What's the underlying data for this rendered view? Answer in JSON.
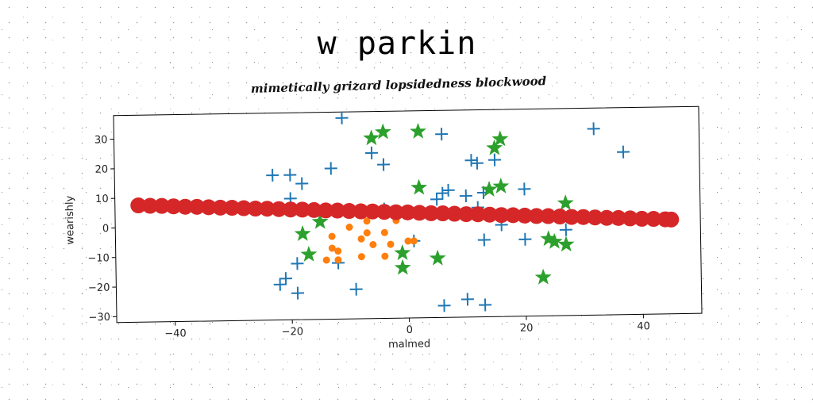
{
  "header": {
    "title": "w parkin",
    "subtitle": "mimetically grizard lopsidedness blockwood"
  },
  "chart_data": {
    "type": "scatter",
    "xlabel": "malmed",
    "ylabel": "wearishly",
    "xlim": [
      -50,
      50
    ],
    "ylim": [
      -32,
      38
    ],
    "xticks": [
      -40,
      -20,
      0,
      20,
      40
    ],
    "yticks": [
      -30,
      -20,
      -10,
      0,
      10,
      20,
      30
    ],
    "xtick_labels": [
      "−40",
      "−20",
      "0",
      "20",
      "40"
    ],
    "ytick_labels": [
      "−30",
      "−20",
      "−10",
      "0",
      "10",
      "20",
      "30"
    ],
    "grid": false,
    "series": [
      {
        "marker": "plus",
        "color": "#1f77b4",
        "points": [
          [
            -11,
            36
          ],
          [
            -6,
            24
          ],
          [
            -4,
            20
          ],
          [
            6,
            30
          ],
          [
            32,
            31
          ],
          [
            37,
            23
          ],
          [
            -23,
            17
          ],
          [
            -20,
            17
          ],
          [
            -18,
            14
          ],
          [
            -13,
            19
          ],
          [
            11,
            21
          ],
          [
            12,
            20
          ],
          [
            15,
            21
          ],
          [
            20,
            11
          ],
          [
            10,
            9
          ],
          [
            6,
            10
          ],
          [
            5,
            8
          ],
          [
            7,
            11
          ],
          [
            13,
            10
          ],
          [
            -20,
            9
          ],
          [
            -4,
            5
          ],
          [
            12,
            5
          ],
          [
            16,
            -1
          ],
          [
            27,
            -3
          ],
          [
            1,
            -6
          ],
          [
            13,
            -6
          ],
          [
            20,
            -6
          ],
          [
            -12,
            -13
          ],
          [
            -19,
            -13
          ],
          [
            -22,
            -20
          ],
          [
            -21,
            -18
          ],
          [
            -19,
            -23
          ],
          [
            -9,
            -22
          ],
          [
            6,
            -28
          ],
          [
            10,
            -26
          ],
          [
            13,
            -28
          ]
        ]
      },
      {
        "marker": "circle",
        "color": "#ff7f0e",
        "points": [
          [
            -7,
            1
          ],
          [
            -2,
            1
          ],
          [
            -10,
            -1
          ],
          [
            -7,
            -3
          ],
          [
            -4,
            -3
          ],
          [
            -13,
            -4
          ],
          [
            -8,
            -5
          ],
          [
            -6,
            -7
          ],
          [
            -3,
            -7
          ],
          [
            0,
            -6
          ],
          [
            1,
            -6
          ],
          [
            -13,
            -8
          ],
          [
            -12,
            -9
          ],
          [
            -8,
            -11
          ],
          [
            -4,
            -11
          ],
          [
            -14,
            -12
          ],
          [
            -12,
            -12
          ]
        ]
      },
      {
        "marker": "star",
        "color": "#2ca02c",
        "points": [
          [
            -4,
            31
          ],
          [
            -6,
            29
          ],
          [
            2,
            31
          ],
          [
            16,
            28
          ],
          [
            15,
            25
          ],
          [
            2,
            12
          ],
          [
            14,
            11
          ],
          [
            16,
            12
          ],
          [
            27,
            6
          ],
          [
            -15,
            1
          ],
          [
            -18,
            -3
          ],
          [
            -17,
            -10
          ],
          [
            -1,
            -10
          ],
          [
            -1,
            -15
          ],
          [
            5,
            -12
          ],
          [
            24,
            -6
          ],
          [
            25,
            -7
          ],
          [
            27,
            -8
          ],
          [
            23,
            -19
          ]
        ]
      },
      {
        "marker": "circle-large",
        "color": "#d62728",
        "points": [
          [
            -46,
            7.5
          ],
          [
            -44,
            7.3
          ],
          [
            -42,
            7.2
          ],
          [
            -40,
            7.0
          ],
          [
            -38,
            6.8
          ],
          [
            -36,
            6.7
          ],
          [
            -34,
            6.5
          ],
          [
            -32,
            6.3
          ],
          [
            -30,
            6.2
          ],
          [
            -28,
            6.0
          ],
          [
            -26,
            5.8
          ],
          [
            -24,
            5.7
          ],
          [
            -22,
            5.5
          ],
          [
            -20,
            5.3
          ],
          [
            -18,
            5.2
          ],
          [
            -16,
            5.0
          ],
          [
            -14,
            4.8
          ],
          [
            -12,
            4.7
          ],
          [
            -10,
            4.5
          ],
          [
            -8,
            4.3
          ],
          [
            -6,
            4.2
          ],
          [
            -4,
            4.0
          ],
          [
            -2,
            3.8
          ],
          [
            0,
            3.7
          ],
          [
            2,
            3.5
          ],
          [
            4,
            3.3
          ],
          [
            6,
            3.2
          ],
          [
            8,
            3.0
          ],
          [
            10,
            2.8
          ],
          [
            12,
            2.7
          ],
          [
            14,
            2.5
          ],
          [
            16,
            2.3
          ],
          [
            18,
            2.2
          ],
          [
            20,
            2.0
          ],
          [
            22,
            1.8
          ],
          [
            24,
            1.7
          ],
          [
            26,
            1.5
          ],
          [
            28,
            1.3
          ],
          [
            30,
            1.2
          ],
          [
            32,
            1.0
          ],
          [
            34,
            0.8
          ],
          [
            36,
            0.7
          ],
          [
            38,
            0.5
          ],
          [
            40,
            0.3
          ],
          [
            42,
            0.2
          ],
          [
            44,
            0.0
          ],
          [
            45,
            -0.1
          ]
        ]
      }
    ]
  }
}
